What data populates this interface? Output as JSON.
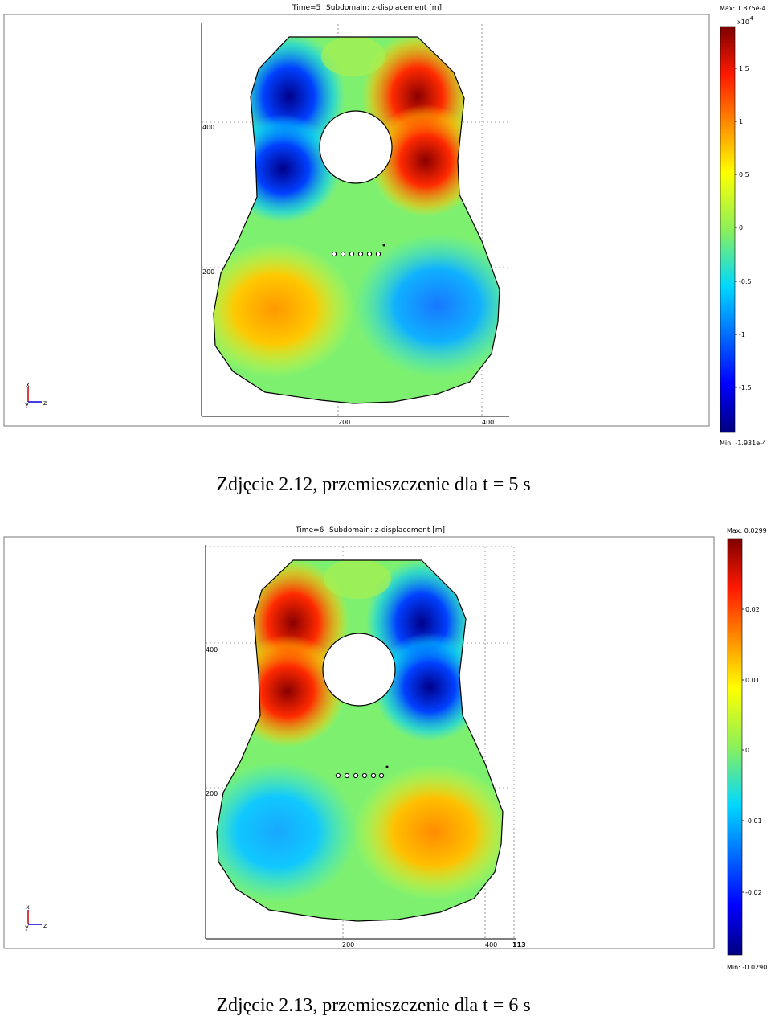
{
  "figures": [
    {
      "title_time": "Time=5",
      "title_sub": "Subdomain: z-displacement [m]",
      "cb_max": "Max: 1.875e-4",
      "cb_min": "Min: -1.931e-4",
      "cb_exp": "x10",
      "cb_exp_pow": "-4",
      "cb_ticks": [
        "1.5",
        "1",
        "0.5",
        "0",
        "-0.5",
        "-1",
        "-1.5"
      ],
      "y_ticks": [
        "400",
        "200"
      ],
      "x_ticks": [
        "200",
        "400"
      ],
      "x_extra": "",
      "axis_x": "x",
      "axis_y": "y",
      "axis_z": "z",
      "caption": "Zdjęcie 2.12, przemieszczenie dla t = 5 s"
    },
    {
      "title_time": "Time=6",
      "title_sub": "Subdomain: z-displacement [m]",
      "cb_max": "Max: 0.0299",
      "cb_min": "Min: -0.0290",
      "cb_exp": "",
      "cb_exp_pow": "",
      "cb_ticks": [
        "0.02",
        "0.01",
        "0",
        "-0.01",
        "-0.02"
      ],
      "y_ticks": [
        "400",
        "200"
      ],
      "x_ticks": [
        "200",
        "400"
      ],
      "x_extra": "113",
      "axis_x": "x",
      "axis_y": "y",
      "axis_z": "z",
      "caption": "Zdjęcie 2.13, przemieszczenie dla t = 6 s"
    }
  ],
  "colors": {
    "jet_dark_red": "#7f0000",
    "jet_red": "#ff2000",
    "jet_orange": "#ff9a00",
    "jet_yellow": "#f4f400",
    "jet_green": "#8cf05a",
    "jet_cyan": "#18e6e6",
    "jet_blue": "#1060ff",
    "jet_dark_blue": "#00007f"
  }
}
